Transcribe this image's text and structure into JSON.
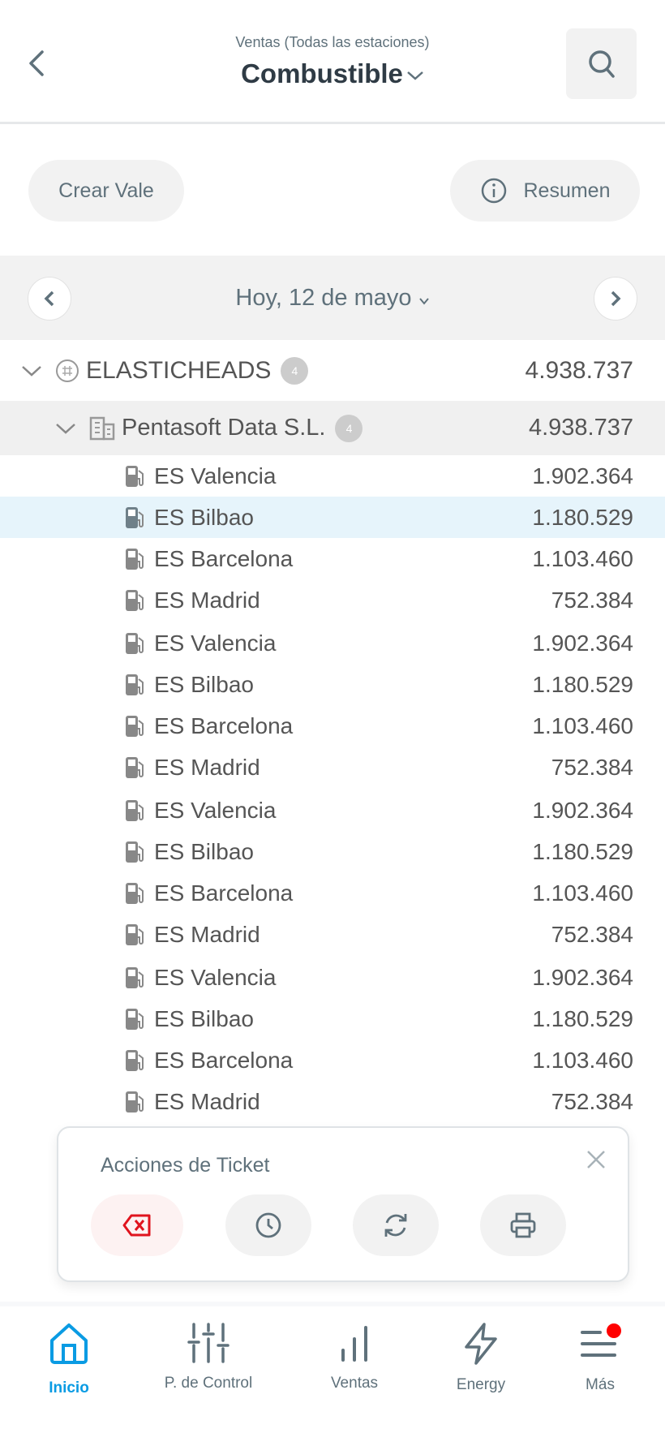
{
  "header": {
    "subtitle": "Ventas (Todas las estaciones)",
    "title": "Combustible"
  },
  "actions": {
    "create_voucher": "Crear Vale",
    "summary": "Resumen"
  },
  "date_nav": {
    "label": "Hoy, 12 de mayo"
  },
  "tree": {
    "root": {
      "name": "ELASTICHEADS",
      "count": "4",
      "value": "4.938.737"
    },
    "company": {
      "name": "Pentasoft Data S.L.",
      "count": "4",
      "value": "4.938.737"
    },
    "stations": [
      {
        "name": "ES Valencia",
        "value": "1.902.364"
      },
      {
        "name": "ES Bilbao",
        "value": "1.180.529",
        "selected": true
      },
      {
        "name": "ES Barcelona",
        "value": "1.103.460"
      },
      {
        "name": "ES Madrid",
        "value": "752.384"
      },
      {
        "name": "ES Valencia",
        "value": "1.902.364"
      },
      {
        "name": "ES Bilbao",
        "value": "1.180.529"
      },
      {
        "name": "ES Barcelona",
        "value": "1.103.460"
      },
      {
        "name": "ES Madrid",
        "value": "752.384"
      },
      {
        "name": "ES Valencia",
        "value": "1.902.364"
      },
      {
        "name": "ES Bilbao",
        "value": "1.180.529"
      },
      {
        "name": "ES Barcelona",
        "value": "1.103.460"
      },
      {
        "name": "ES Madrid",
        "value": "752.384"
      },
      {
        "name": "ES Valencia",
        "value": "1.902.364"
      },
      {
        "name": "ES Bilbao",
        "value": "1.180.529"
      },
      {
        "name": "ES Barcelona",
        "value": "1.103.460"
      },
      {
        "name": "ES Madrid",
        "value": "752.384"
      }
    ]
  },
  "ticket_popup": {
    "title": "Acciones de Ticket",
    "buttons": [
      "delete-icon",
      "clock-icon",
      "refresh-icon",
      "printer-icon"
    ]
  },
  "bottom_nav": {
    "items": [
      {
        "label": "Inicio",
        "active": true
      },
      {
        "label": "P. de Control"
      },
      {
        "label": "Ventas"
      },
      {
        "label": "Energy"
      },
      {
        "label": "Más",
        "notification": true
      }
    ]
  },
  "colors": {
    "accent": "#0a9be3",
    "danger": "#e0141e",
    "selected_row": "#e6f4fb",
    "notification": "#ff0000"
  }
}
